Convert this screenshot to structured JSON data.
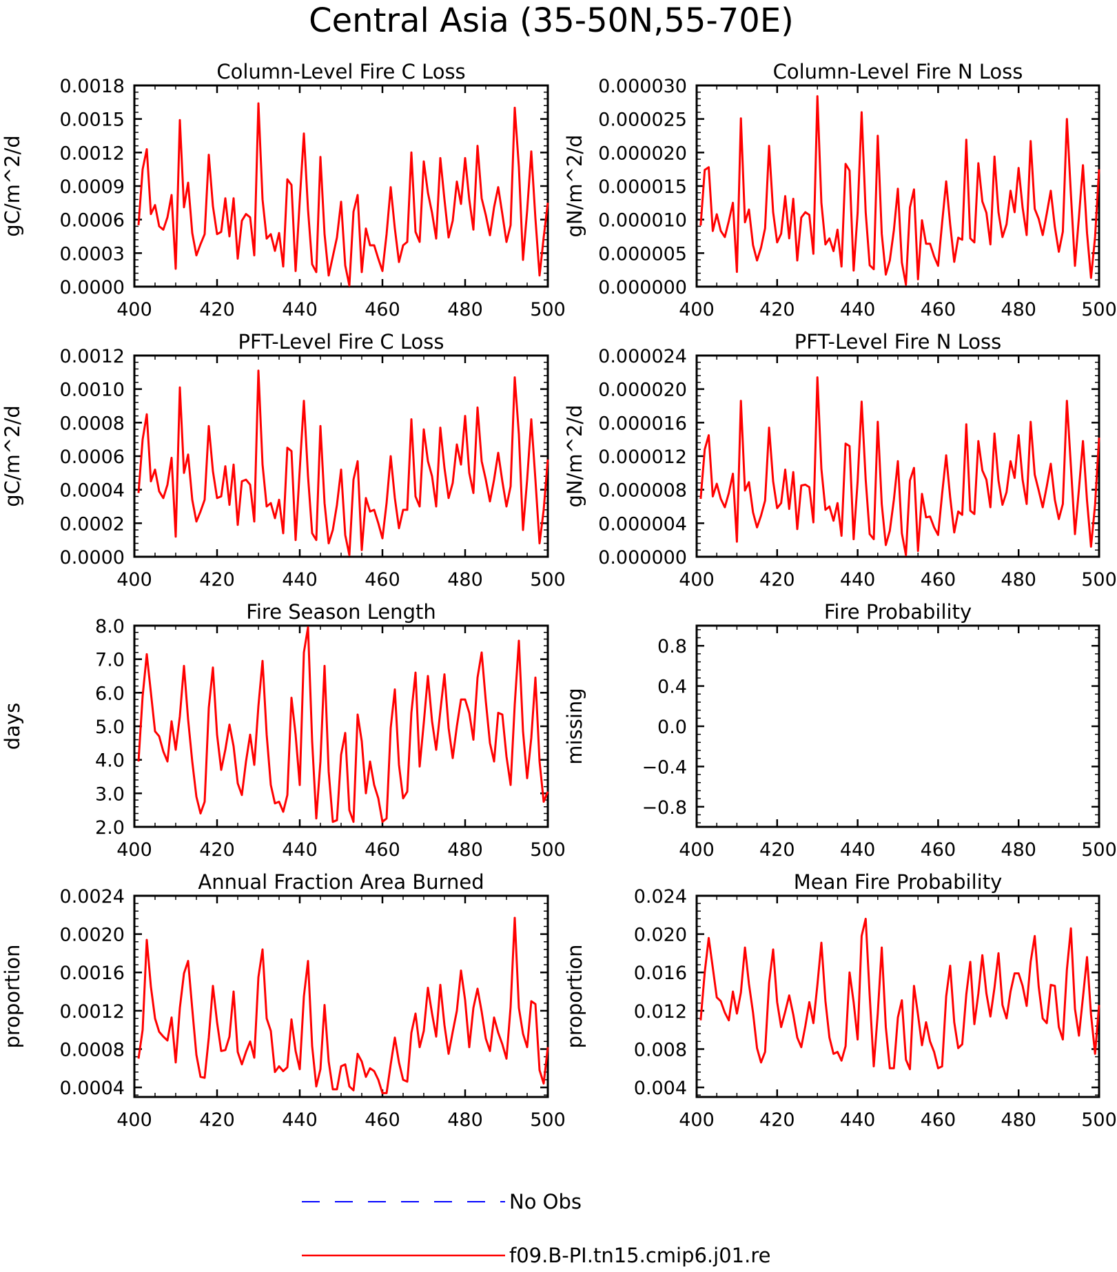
{
  "figure": {
    "title": "Central Asia (35-50N,55-70E)",
    "legend": [
      {
        "label": "No Obs",
        "color": "#0000ff",
        "dash": "dashed"
      },
      {
        "label": "f09.B-PI.tn15.cmip6.j01.re",
        "color": "#ff0000",
        "dash": "solid"
      }
    ]
  },
  "chart_data": [
    {
      "type": "line",
      "title": "Column-Level Fire C Loss",
      "ylabel": "gC/m^2/d",
      "xlim": [
        400,
        500
      ],
      "xticks": [
        400,
        420,
        440,
        460,
        480,
        500
      ],
      "ylim": [
        0,
        0.0018
      ],
      "yticks": [
        "0.0000",
        "0.0003",
        "0.0006",
        "0.0009",
        "0.0012",
        "0.0015",
        "0.0018"
      ],
      "series": [
        {
          "name": "f09.B-PI.tn15.cmip6.j01.re",
          "color": "#ff0000",
          "x_start": 401,
          "values": [
            0.00055,
            0.00105,
            0.00123,
            0.00065,
            0.00073,
            0.00054,
            0.00051,
            0.00062,
            0.00082,
            0.00016,
            0.00149,
            0.00071,
            0.00093,
            0.00048,
            0.00028,
            0.00038,
            0.00047,
            0.00118,
            0.00072,
            0.00047,
            0.00049,
            0.00079,
            0.00045,
            0.00079,
            0.00025,
            0.00059,
            0.00065,
            0.00062,
            0.00028,
            0.00164,
            0.00078,
            0.00043,
            0.00047,
            0.00032,
            0.00048,
            0.00018,
            0.00096,
            0.00091,
            0.00014,
            0.00077,
            0.00137,
            0.00069,
            0.0002,
            0.00013,
            0.00116,
            0.00047,
            0.0001,
            0.00027,
            0.00044,
            0.00076,
            0.00019,
            1e-05,
            0.00067,
            0.00082,
            0.00013,
            0.00052,
            0.00037,
            0.00037,
            0.00025,
            0.00014,
            0.00047,
            0.00089,
            0.00052,
            0.00022,
            0.00037,
            0.0004,
            0.0012,
            0.00049,
            0.0004,
            0.00112,
            0.00084,
            0.00066,
            0.00043,
            0.00115,
            0.00078,
            0.00044,
            0.00059,
            0.00094,
            0.00074,
            0.00115,
            0.00078,
            0.00051,
            0.00126,
            0.00079,
            0.00064,
            0.00046,
            0.00071,
            0.00089,
            0.00065,
            0.0004,
            0.00055,
            0.0016,
            0.00107,
            0.00024,
            0.00068,
            0.00121,
            0.00061,
            0.0001,
            0.00044,
            0.00075
          ]
        }
      ]
    },
    {
      "type": "line",
      "title": "Column-Level Fire N Loss",
      "ylabel": "gN/m^2/d",
      "xlim": [
        400,
        500
      ],
      "xticks": [
        400,
        420,
        440,
        460,
        480,
        500
      ],
      "ylim": [
        0,
        3e-05
      ],
      "yticks": [
        "0.000000",
        "0.000005",
        "0.000010",
        "0.000015",
        "0.000020",
        "0.000025",
        "0.000030"
      ],
      "series": [
        {
          "name": "f09.B-PI.tn15.cmip6.j01.re",
          "color": "#ff0000",
          "x_start": 401,
          "values": [
            9.1e-06,
            1.74e-05,
            1.78e-05,
            8.3e-06,
            1.08e-05,
            8.3e-06,
            7.4e-06,
            9.8e-06,
            1.25e-05,
            2.2e-06,
            2.51e-05,
            9.6e-06,
            1.15e-05,
            6.2e-06,
            3.9e-06,
            5.8e-06,
            8.7e-06,
            2.1e-05,
            1.11e-05,
            6.6e-06,
            7.9e-06,
            1.35e-05,
            7.2e-06,
            1.31e-05,
            3.9e-06,
            1.03e-05,
            1.11e-05,
            1.07e-05,
            4.9e-06,
            2.84e-05,
            1.25e-05,
            6.3e-06,
            7.2e-06,
            5.3e-06,
            8.5e-06,
            3e-06,
            1.83e-05,
            1.73e-05,
            2.4e-06,
            1.1e-05,
            2.6e-05,
            1.11e-05,
            3.2e-06,
            2.6e-06,
            2.25e-05,
            7.9e-06,
            1.8e-06,
            3.9e-06,
            8.4e-06,
            1.46e-05,
            3.6e-06,
            3e-07,
            1.18e-05,
            1.45e-05,
            1.1e-06,
            9.9e-06,
            6.4e-06,
            6.4e-06,
            4.5e-06,
            3.1e-06,
            9.5e-06,
            1.57e-05,
            9.3e-06,
            3.7e-06,
            7.3e-06,
            7e-06,
            2.19e-05,
            7.2e-06,
            6.6e-06,
            1.84e-05,
            1.27e-05,
            1.1e-05,
            6.3e-06,
            1.94e-05,
            1.11e-05,
            7.4e-06,
            9.3e-06,
            1.43e-05,
            1.11e-05,
            1.77e-05,
            1.18e-05,
            7.7e-06,
            2.17e-05,
            1.16e-05,
            1.01e-05,
            7.7e-06,
            1.09e-05,
            1.43e-05,
            8.9e-06,
            5.2e-06,
            8.2e-06,
            2.5e-05,
            1.38e-05,
            3.1e-06,
            1.04e-05,
            1.81e-05,
            8e-06,
            1.3e-06,
            7.4e-06,
            1.75e-05
          ]
        }
      ]
    },
    {
      "type": "line",
      "title": "PFT-Level Fire C Loss",
      "ylabel": "gC/m^2/d",
      "xlim": [
        400,
        500
      ],
      "xticks": [
        400,
        420,
        440,
        460,
        480,
        500
      ],
      "ylim": [
        0,
        0.0012
      ],
      "yticks": [
        "0.0000",
        "0.0002",
        "0.0004",
        "0.0006",
        "0.0008",
        "0.0010",
        "0.0012"
      ],
      "series": [
        {
          "name": "f09.B-PI.tn15.cmip6.j01.re",
          "color": "#ff0000",
          "x_start": 401,
          "values": [
            0.00038,
            0.0007,
            0.00085,
            0.00045,
            0.00052,
            0.00039,
            0.00035,
            0.00043,
            0.00059,
            0.00012,
            0.00101,
            0.0005,
            0.00061,
            0.00034,
            0.00021,
            0.00027,
            0.00034,
            0.00078,
            0.00051,
            0.00035,
            0.00036,
            0.00054,
            0.00031,
            0.00055,
            0.00019,
            0.00045,
            0.00046,
            0.00043,
            0.00021,
            0.00111,
            0.00055,
            0.0003,
            0.00032,
            0.00023,
            0.00034,
            0.00014,
            0.00065,
            0.00063,
            0.0001,
            0.00052,
            0.00093,
            0.00048,
            0.00014,
            0.0001,
            0.00078,
            0.00032,
            8e-05,
            0.00016,
            0.00031,
            0.00052,
            0.00013,
            1e-05,
            0.00046,
            0.00057,
            4e-05,
            0.00035,
            0.00027,
            0.00028,
            0.0002,
            0.00011,
            0.00032,
            0.0006,
            0.00035,
            0.00017,
            0.00028,
            0.00028,
            0.00082,
            0.00036,
            0.0003,
            0.00076,
            0.00057,
            0.00048,
            0.0003,
            0.00077,
            0.00053,
            0.00035,
            0.00044,
            0.00067,
            0.00055,
            0.00084,
            0.0005,
            0.00038,
            0.00089,
            0.00057,
            0.00046,
            0.00033,
            0.00046,
            0.00062,
            0.00045,
            0.0003,
            0.00042,
            0.00107,
            0.00073,
            0.00016,
            0.00046,
            0.00082,
            0.00046,
            8e-05,
            0.00028,
            0.00058
          ]
        }
      ]
    },
    {
      "type": "line",
      "title": "PFT-Level Fire N Loss",
      "ylabel": "gN/m^2/d",
      "xlim": [
        400,
        500
      ],
      "xticks": [
        400,
        420,
        440,
        460,
        480,
        500
      ],
      "ylim": [
        0,
        2.4e-05
      ],
      "yticks": [
        "0.000000",
        "0.000004",
        "0.000008",
        "0.000012",
        "0.000016",
        "0.000020",
        "0.000024"
      ],
      "series": [
        {
          "name": "f09.B-PI.tn15.cmip6.j01.re",
          "color": "#ff0000",
          "x_start": 401,
          "values": [
            6.9e-06,
            1.28e-05,
            1.45e-05,
            7.2e-06,
            8.7e-06,
            6.9e-06,
            5.9e-06,
            7.6e-06,
            9.9e-06,
            1.8e-06,
            1.86e-05,
            7.9e-06,
            8.9e-06,
            5.3e-06,
            3.5e-06,
            4.9e-06,
            6.7e-06,
            1.54e-05,
            9e-06,
            5.8e-06,
            6.4e-06,
            1.04e-05,
            5.7e-06,
            1.01e-05,
            3.3e-06,
            8.5e-06,
            8.6e-06,
            8.3e-06,
            4.1e-06,
            2.14e-05,
            1.05e-05,
            5.6e-06,
            6e-06,
            4.3e-06,
            6.4e-06,
            2.5e-06,
            1.35e-05,
            1.32e-05,
            2.1e-06,
            9e-06,
            1.85e-05,
            9.2e-06,
            2.7e-06,
            2.1e-06,
            1.61e-05,
            6.3e-06,
            1.4e-06,
            3.1e-06,
            6.8e-06,
            1.14e-05,
            2.8e-06,
            2e-07,
            9.1e-06,
            1.06e-05,
            7e-07,
            7.5e-06,
            4.7e-06,
            4.8e-06,
            3.5e-06,
            2.6e-06,
            7.5e-06,
            1.21e-05,
            7.1e-06,
            2.9e-06,
            5.4e-06,
            5e-06,
            1.58e-05,
            5.5e-06,
            5.1e-06,
            1.38e-05,
            1.03e-05,
            9.2e-06,
            5.9e-06,
            1.47e-05,
            9.1e-06,
            6.2e-06,
            7.7e-06,
            1.14e-05,
            9.4e-06,
            1.45e-05,
            9.2e-06,
            6.3e-06,
            1.61e-05,
            9.8e-06,
            7.9e-06,
            5.9e-06,
            8.4e-06,
            1.11e-05,
            6.8e-06,
            4.5e-06,
            6.3e-06,
            1.86e-05,
            1.08e-05,
            2.7e-06,
            8.1e-06,
            1.38e-05,
            6.7e-06,
            1.2e-06,
            6.2e-06,
            1.42e-05
          ]
        }
      ]
    },
    {
      "type": "line",
      "title": "Fire Season Length",
      "ylabel": "days",
      "xlim": [
        400,
        500
      ],
      "xticks": [
        400,
        420,
        440,
        460,
        480,
        500
      ],
      "ylim": [
        2.0,
        8.0
      ],
      "yticks": [
        "2.0",
        "3.0",
        "4.0",
        "5.0",
        "6.0",
        "7.0",
        "8.0"
      ],
      "series": [
        {
          "name": "f09.B-PI.tn15.cmip6.j01.re",
          "color": "#ff0000",
          "x_start": 401,
          "values": [
            3.95,
            5.9,
            7.15,
            6.0,
            4.85,
            4.7,
            4.25,
            3.95,
            5.15,
            4.3,
            5.3,
            6.8,
            5.2,
            3.95,
            2.9,
            2.4,
            2.75,
            5.55,
            6.75,
            4.75,
            3.7,
            4.3,
            5.05,
            4.4,
            3.3,
            2.95,
            3.95,
            4.75,
            3.85,
            5.6,
            6.95,
            4.75,
            3.25,
            2.7,
            2.75,
            2.45,
            2.95,
            5.85,
            4.75,
            3.25,
            7.2,
            7.95,
            4.55,
            2.25,
            3.95,
            6.8,
            3.65,
            2.15,
            2.2,
            4.15,
            4.8,
            2.5,
            2.15,
            5.35,
            4.55,
            3.0,
            3.95,
            3.25,
            2.85,
            2.15,
            2.25,
            4.95,
            6.1,
            3.85,
            2.85,
            3.05,
            5.4,
            6.6,
            3.8,
            5.1,
            6.5,
            5.15,
            4.3,
            5.45,
            6.55,
            4.95,
            4.05,
            5.0,
            5.8,
            5.8,
            5.4,
            4.6,
            6.45,
            7.2,
            5.75,
            4.5,
            3.95,
            5.4,
            5.35,
            4.1,
            3.25,
            5.65,
            7.55,
            4.85,
            3.45,
            4.65,
            6.45,
            3.95,
            2.75,
            3.05
          ]
        }
      ]
    },
    {
      "type": "line",
      "title": "Fire Probability",
      "ylabel": "missing",
      "xlim": [
        400,
        500
      ],
      "xticks": [
        400,
        420,
        440,
        460,
        480,
        500
      ],
      "ylim": [
        -1.0,
        1.0
      ],
      "yticks": [
        "−0.8",
        "−0.4",
        "0.0",
        "0.4",
        "0.8"
      ],
      "series": []
    },
    {
      "type": "line",
      "title": "Annual Fraction Area Burned",
      "ylabel": "proportion",
      "xlim": [
        400,
        500
      ],
      "xticks": [
        400,
        420,
        440,
        460,
        480,
        500
      ],
      "ylim": [
        0.0003,
        0.0024
      ],
      "yticks": [
        "0.0004",
        "0.0008",
        "0.0012",
        "0.0016",
        "0.0020",
        "0.0024"
      ],
      "series": [
        {
          "name": "f09.B-PI.tn15.cmip6.j01.re",
          "color": "#ff0000",
          "x_start": 401,
          "values": [
            0.0007,
            0.001,
            0.00194,
            0.00145,
            0.00112,
            0.00098,
            0.00093,
            0.00089,
            0.00113,
            0.00066,
            0.00123,
            0.00159,
            0.00172,
            0.00122,
            0.00074,
            0.00051,
            0.0005,
            0.00092,
            0.00146,
            0.00108,
            0.00078,
            0.00079,
            0.00093,
            0.0014,
            0.00077,
            0.00064,
            0.00077,
            0.00088,
            0.00071,
            0.00155,
            0.00184,
            0.00112,
            0.00099,
            0.00056,
            0.00062,
            0.00057,
            0.00061,
            0.00111,
            0.00078,
            0.00059,
            0.00135,
            0.00172,
            0.00083,
            0.00041,
            0.00059,
            0.00126,
            0.00067,
            0.00038,
            0.00038,
            0.00062,
            0.00064,
            0.00041,
            0.00037,
            0.00075,
            0.00067,
            0.00051,
            0.0006,
            0.00057,
            0.00048,
            0.00034,
            0.00034,
            0.00064,
            0.00092,
            0.00066,
            0.00048,
            0.00046,
            0.00097,
            0.00117,
            0.00082,
            0.00099,
            0.00144,
            0.00117,
            0.00093,
            0.00147,
            0.00105,
            0.00075,
            0.00098,
            0.0012,
            0.00162,
            0.00131,
            0.00082,
            0.00123,
            0.00143,
            0.00119,
            0.00091,
            0.00078,
            0.00113,
            0.00097,
            0.00085,
            0.0007,
            0.00124,
            0.00217,
            0.00123,
            0.00096,
            0.00082,
            0.0013,
            0.00127,
            0.00058,
            0.00044,
            0.00082
          ]
        }
      ]
    },
    {
      "type": "line",
      "title": "Mean Fire Probability",
      "ylabel": "proportion",
      "xlim": [
        400,
        500
      ],
      "xticks": [
        400,
        420,
        440,
        460,
        480,
        500
      ],
      "ylim": [
        0.003,
        0.024
      ],
      "yticks": [
        "0.004",
        "0.008",
        "0.012",
        "0.016",
        "0.020",
        "0.024"
      ],
      "series": [
        {
          "name": "f09.B-PI.tn15.cmip6.j01.re",
          "color": "#ff0000",
          "x_start": 401,
          "values": [
            0.011,
            0.016,
            0.0196,
            0.0165,
            0.0134,
            0.013,
            0.0118,
            0.011,
            0.014,
            0.0117,
            0.0139,
            0.0186,
            0.0148,
            0.0118,
            0.0081,
            0.0066,
            0.0077,
            0.0149,
            0.0184,
            0.0129,
            0.0103,
            0.0119,
            0.0136,
            0.0116,
            0.0092,
            0.0082,
            0.0104,
            0.0129,
            0.0107,
            0.0147,
            0.0191,
            0.013,
            0.0092,
            0.0075,
            0.0077,
            0.0068,
            0.0083,
            0.016,
            0.0129,
            0.009,
            0.0198,
            0.0216,
            0.0136,
            0.0062,
            0.0117,
            0.0186,
            0.0103,
            0.006,
            0.006,
            0.0113,
            0.0131,
            0.0069,
            0.0059,
            0.0146,
            0.0116,
            0.0084,
            0.0108,
            0.0088,
            0.0077,
            0.006,
            0.0062,
            0.0135,
            0.0167,
            0.0108,
            0.0081,
            0.0085,
            0.0137,
            0.0171,
            0.0106,
            0.0138,
            0.0178,
            0.0138,
            0.0114,
            0.0144,
            0.018,
            0.0126,
            0.0112,
            0.014,
            0.0159,
            0.0159,
            0.0146,
            0.0125,
            0.0171,
            0.0198,
            0.0145,
            0.0112,
            0.0107,
            0.0147,
            0.0146,
            0.0103,
            0.009,
            0.0163,
            0.0206,
            0.0122,
            0.0094,
            0.0134,
            0.0176,
            0.0116,
            0.0075,
            0.0126
          ]
        }
      ]
    }
  ]
}
